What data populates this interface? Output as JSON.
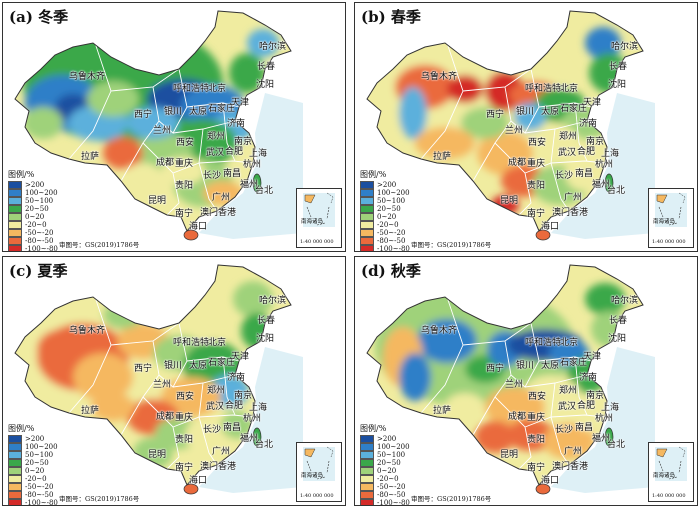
{
  "panels": [
    {
      "title": "(a) 冬季",
      "season": "winter"
    },
    {
      "title": "(b) 春季",
      "season": "spring"
    },
    {
      "title": "(c) 夏季",
      "season": "summer"
    },
    {
      "title": "(d) 秋季",
      "season": "autumn"
    }
  ],
  "legend": {
    "title": "图例/%",
    "items": [
      {
        "label": ">200",
        "color": "#1b4fa0"
      },
      {
        "label": "100~200",
        "color": "#2f7fc8"
      },
      {
        "label": "50~100",
        "color": "#5bb0dc"
      },
      {
        "label": "20~50",
        "color": "#3aa84a"
      },
      {
        "label": "0~20",
        "color": "#9fd27a"
      },
      {
        "label": "-20~0",
        "color": "#f0eca0"
      },
      {
        "label": "-50~-20",
        "color": "#f5b860"
      },
      {
        "label": "-80~-50",
        "color": "#ea6a3c"
      },
      {
        "label": "-100~-80",
        "color": "#d42a28"
      }
    ]
  },
  "map_review_number": "审图号：GS(2019)1786号",
  "inset": {
    "island_label": "南海诸岛",
    "scale": "1:40 000 000"
  },
  "cities": [
    "哈尔滨",
    "长春",
    "沈阳",
    "乌鲁木齐",
    "呼和浩特",
    "北京",
    "天津",
    "太原",
    "石家庄",
    "银川",
    "西宁",
    "济南",
    "兰州",
    "郑州",
    "西安",
    "拉萨",
    "成都",
    "重庆",
    "武汉",
    "合肥",
    "南京",
    "上海",
    "杭州",
    "长沙",
    "南昌",
    "贵阳",
    "福州",
    "台北",
    "昆明",
    "广州",
    "南宁",
    "澳门",
    "香港",
    "海口"
  ],
  "colors": {
    "sea": "#c8e6f0",
    "border": "#333333",
    "province": "#ffffff"
  }
}
